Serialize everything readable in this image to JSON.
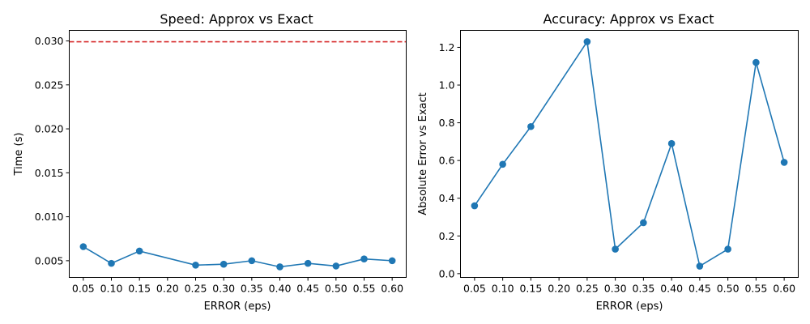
{
  "chart_data": [
    {
      "type": "line",
      "title": "Speed: Approx vs Exact",
      "xlabel": "ERROR (eps)",
      "ylabel": "Time (s)",
      "xlim": [
        0.025,
        0.625
      ],
      "ylim": [
        0.0031,
        0.0312
      ],
      "xticks": [
        "0.05",
        "0.10",
        "0.15",
        "0.20",
        "0.25",
        "0.30",
        "0.35",
        "0.40",
        "0.45",
        "0.50",
        "0.55",
        "0.60"
      ],
      "yticks": [
        "0.005",
        "0.010",
        "0.015",
        "0.020",
        "0.025",
        "0.030"
      ],
      "grid": false,
      "series": [
        {
          "x": [
            0.05,
            0.1,
            0.15,
            0.25,
            0.3,
            0.35,
            0.4,
            0.45,
            0.5,
            0.55,
            0.6
          ],
          "y": [
            0.0066,
            0.0047,
            0.0061,
            0.0045,
            0.0046,
            0.005,
            0.0043,
            0.0047,
            0.0044,
            0.0052,
            0.005
          ],
          "color": "#1f77b4"
        }
      ],
      "hline": {
        "y": 0.0299,
        "color": "#d62728",
        "style": "dashed"
      }
    },
    {
      "type": "line",
      "title": "Accuracy: Approx vs Exact",
      "xlabel": "ERROR (eps)",
      "ylabel": "Absolute Error vs Exact",
      "xlim": [
        0.025,
        0.625
      ],
      "ylim": [
        -0.02,
        1.29
      ],
      "xticks": [
        "0.05",
        "0.10",
        "0.15",
        "0.20",
        "0.25",
        "0.30",
        "0.35",
        "0.40",
        "0.45",
        "0.50",
        "0.55",
        "0.60"
      ],
      "yticks": [
        "0.0",
        "0.2",
        "0.4",
        "0.6",
        "0.8",
        "1.0",
        "1.2"
      ],
      "grid": false,
      "series": [
        {
          "x": [
            0.05,
            0.1,
            0.15,
            0.25,
            0.3,
            0.35,
            0.4,
            0.45,
            0.5,
            0.55,
            0.6
          ],
          "y": [
            0.36,
            0.58,
            0.78,
            1.23,
            0.13,
            0.27,
            0.69,
            0.04,
            0.13,
            1.12,
            0.59
          ],
          "color": "#1f77b4"
        }
      ]
    }
  ]
}
